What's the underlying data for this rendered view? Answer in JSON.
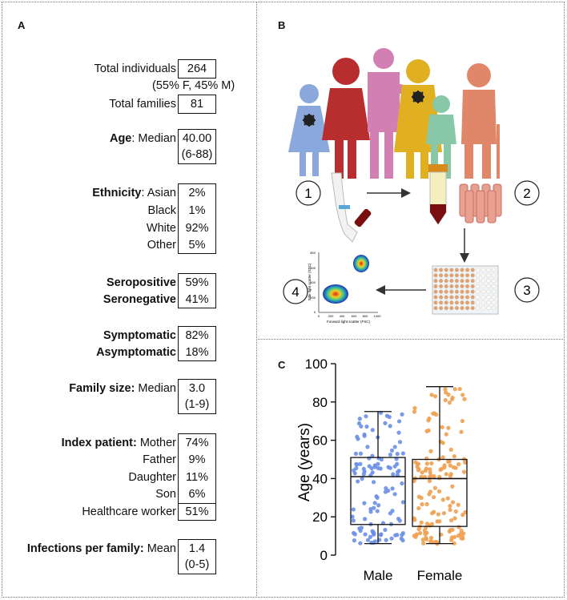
{
  "panel_a": {
    "label": "A",
    "total_individuals": {
      "label": "Total individuals",
      "value": "264",
      "sub": "(55% F, 45% M)"
    },
    "total_families": {
      "label": "Total families",
      "value": "81"
    },
    "age": {
      "label_bold": "Age",
      "label": ": Median",
      "value": "40.00",
      "range": "(6-88)"
    },
    "ethnicity": {
      "label_bold": "Ethnicity",
      "rows": [
        {
          "label": ": Asian",
          "value": "2%"
        },
        {
          "label": "Black",
          "value": "1%"
        },
        {
          "label": "White",
          "value": "92%"
        },
        {
          "label": "Other",
          "value": "5%"
        }
      ]
    },
    "serostatus": [
      {
        "label": "Seropositive",
        "value": "59%"
      },
      {
        "label": "Seronegative",
        "value": "41%"
      }
    ],
    "symptoms": [
      {
        "label": "Symptomatic",
        "value": "82%"
      },
      {
        "label": "Asymptomatic",
        "value": "18%"
      }
    ],
    "family_size": {
      "label_bold": "Family size:",
      "label": " Median",
      "value": "3.0",
      "range": "(1-9)"
    },
    "index_patient": {
      "label_bold": "Index patient:",
      "rows": [
        {
          "label": " Mother",
          "value": "74%"
        },
        {
          "label": "Father",
          "value": "9%"
        },
        {
          "label": "Daughter",
          "value": "11%"
        },
        {
          "label": "Son",
          "value": "6%"
        },
        {
          "label": "Healthcare worker",
          "value": "51%"
        }
      ]
    },
    "infections": {
      "label_bold": "Infections per family:",
      "label": " Mean",
      "value": "1.4",
      "range": "(0-5)"
    }
  },
  "panel_b": {
    "label": "B",
    "steps": [
      "1",
      "2",
      "3",
      "4"
    ],
    "flow_ylabel": "Side light scatter (SSC)",
    "flow_xlabel": "Forward light scatter (FSC)",
    "flow_xticks": [
      "0",
      "200",
      "400",
      "600",
      "800",
      "1000"
    ],
    "flow_yticks": [
      "0",
      "200",
      "400",
      "600",
      "800"
    ],
    "colors": {
      "virus": "#222222",
      "blood": "#7a0e0e",
      "plate": "#e0a070"
    }
  },
  "panel_c": {
    "label": "C"
  },
  "chart_data": {
    "type": "box",
    "title": "",
    "xlabel": "",
    "ylabel": "Age (years)",
    "ylim": [
      0,
      100
    ],
    "yticks": [
      0,
      20,
      40,
      60,
      80,
      100
    ],
    "categories": [
      "Male",
      "Female"
    ],
    "series": [
      {
        "name": "Male",
        "color": "#6a8fe8",
        "min": 6,
        "q1": 16,
        "median": 41,
        "q3": 51,
        "max": 75,
        "n": 119
      },
      {
        "name": "Female",
        "color": "#f0a050",
        "min": 6,
        "q1": 15,
        "median": 40,
        "q3": 50,
        "max": 88,
        "n": 145
      }
    ]
  }
}
